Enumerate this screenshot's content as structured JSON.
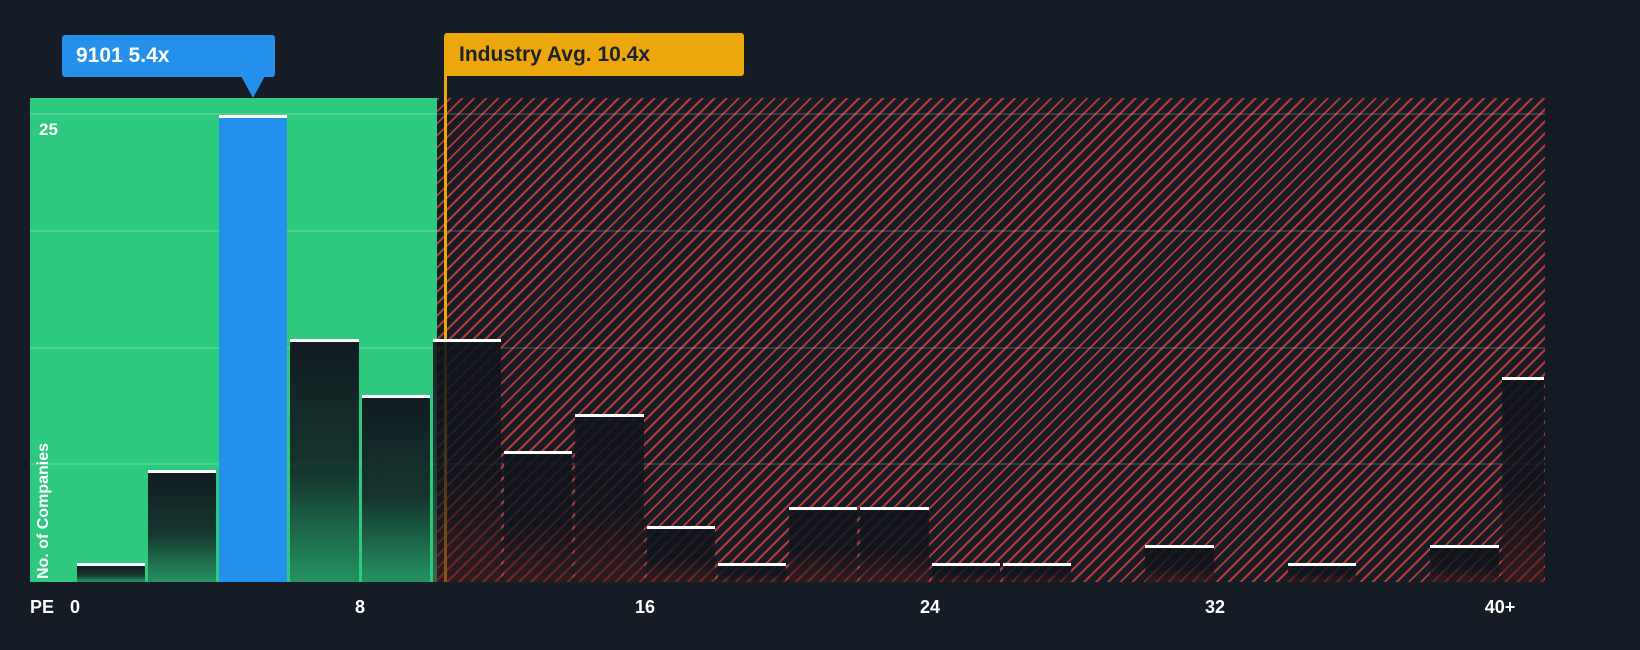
{
  "colors": {
    "background": "#151C26",
    "green_zone": "#2DC97E",
    "company_blue": "#2490EB",
    "industry_amber": "#EBA70B",
    "industry_label_text": "#1C222C",
    "hatch_red": "#E3413A",
    "bar_cap": "#FFFFFF",
    "axis_text": "#FFFFFF"
  },
  "chart_data": {
    "type": "bar",
    "title": "",
    "xlabel": "PE",
    "ylabel": "No. of Companies",
    "x_tick_labels": [
      "0",
      "8",
      "16",
      "24",
      "32",
      "40+"
    ],
    "x_tick_values": [
      0,
      8,
      16,
      24,
      32,
      40
    ],
    "y_tick_labels": [
      "25"
    ],
    "y_tick_values": [
      25
    ],
    "ylim": [
      0,
      26
    ],
    "bin_width": 2,
    "bins": [
      {
        "pe_start": 0,
        "count": 1
      },
      {
        "pe_start": 2,
        "count": 6
      },
      {
        "pe_start": 4,
        "count": 25,
        "highlight": "company"
      },
      {
        "pe_start": 6,
        "count": 13
      },
      {
        "pe_start": 8,
        "count": 10
      },
      {
        "pe_start": 10,
        "count": 13
      },
      {
        "pe_start": 12,
        "count": 7
      },
      {
        "pe_start": 14,
        "count": 9
      },
      {
        "pe_start": 16,
        "count": 3
      },
      {
        "pe_start": 18,
        "count": 1
      },
      {
        "pe_start": 20,
        "count": 4
      },
      {
        "pe_start": 22,
        "count": 4
      },
      {
        "pe_start": 24,
        "count": 1
      },
      {
        "pe_start": 26,
        "count": 1
      },
      {
        "pe_start": 28,
        "count": 0
      },
      {
        "pe_start": 30,
        "count": 2
      },
      {
        "pe_start": 32,
        "count": 0
      },
      {
        "pe_start": 34,
        "count": 1
      },
      {
        "pe_start": 36,
        "count": 0
      },
      {
        "pe_start": 38,
        "count": 2
      },
      {
        "pe_start": 40,
        "count": 11,
        "last_bin": true
      }
    ],
    "company_marker": {
      "label": "9101 5.4x",
      "ticker": "9101",
      "pe": 5.4
    },
    "industry_marker": {
      "label": "Industry Avg. 10.4x",
      "pe": 10.4
    },
    "green_zone_end_pe": 10.15,
    "gridline_counts": [
      6.25,
      12.5,
      18.75,
      25
    ]
  }
}
